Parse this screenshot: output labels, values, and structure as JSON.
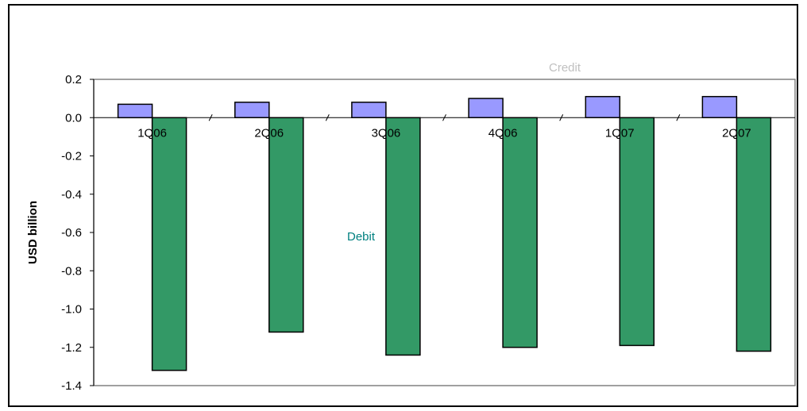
{
  "chart_data": {
    "type": "bar",
    "title": "",
    "xlabel": "",
    "ylabel": "USD billion",
    "ylim": [
      -1.4,
      0.2
    ],
    "yticks": [
      "0.2",
      "0.0",
      "-0.2",
      "-0.4",
      "-0.6",
      "-0.8",
      "-1.0",
      "-1.2",
      "-1.4"
    ],
    "categories": [
      "1Q06",
      "2Q06",
      "3Q06",
      "4Q06",
      "1Q07",
      "2Q07"
    ],
    "series": [
      {
        "name": "Credit",
        "values": [
          0.07,
          0.08,
          0.08,
          0.1,
          0.11,
          0.11
        ],
        "color": "#9999ff"
      },
      {
        "name": "Debit",
        "values": [
          -1.32,
          -1.12,
          -1.24,
          -1.2,
          -1.19,
          -1.22
        ],
        "color": "#339966"
      }
    ],
    "label_colors": {
      "Credit": "#c0c0c0",
      "Debit": "#008080"
    },
    "grid": false,
    "legend": "inline labels"
  }
}
